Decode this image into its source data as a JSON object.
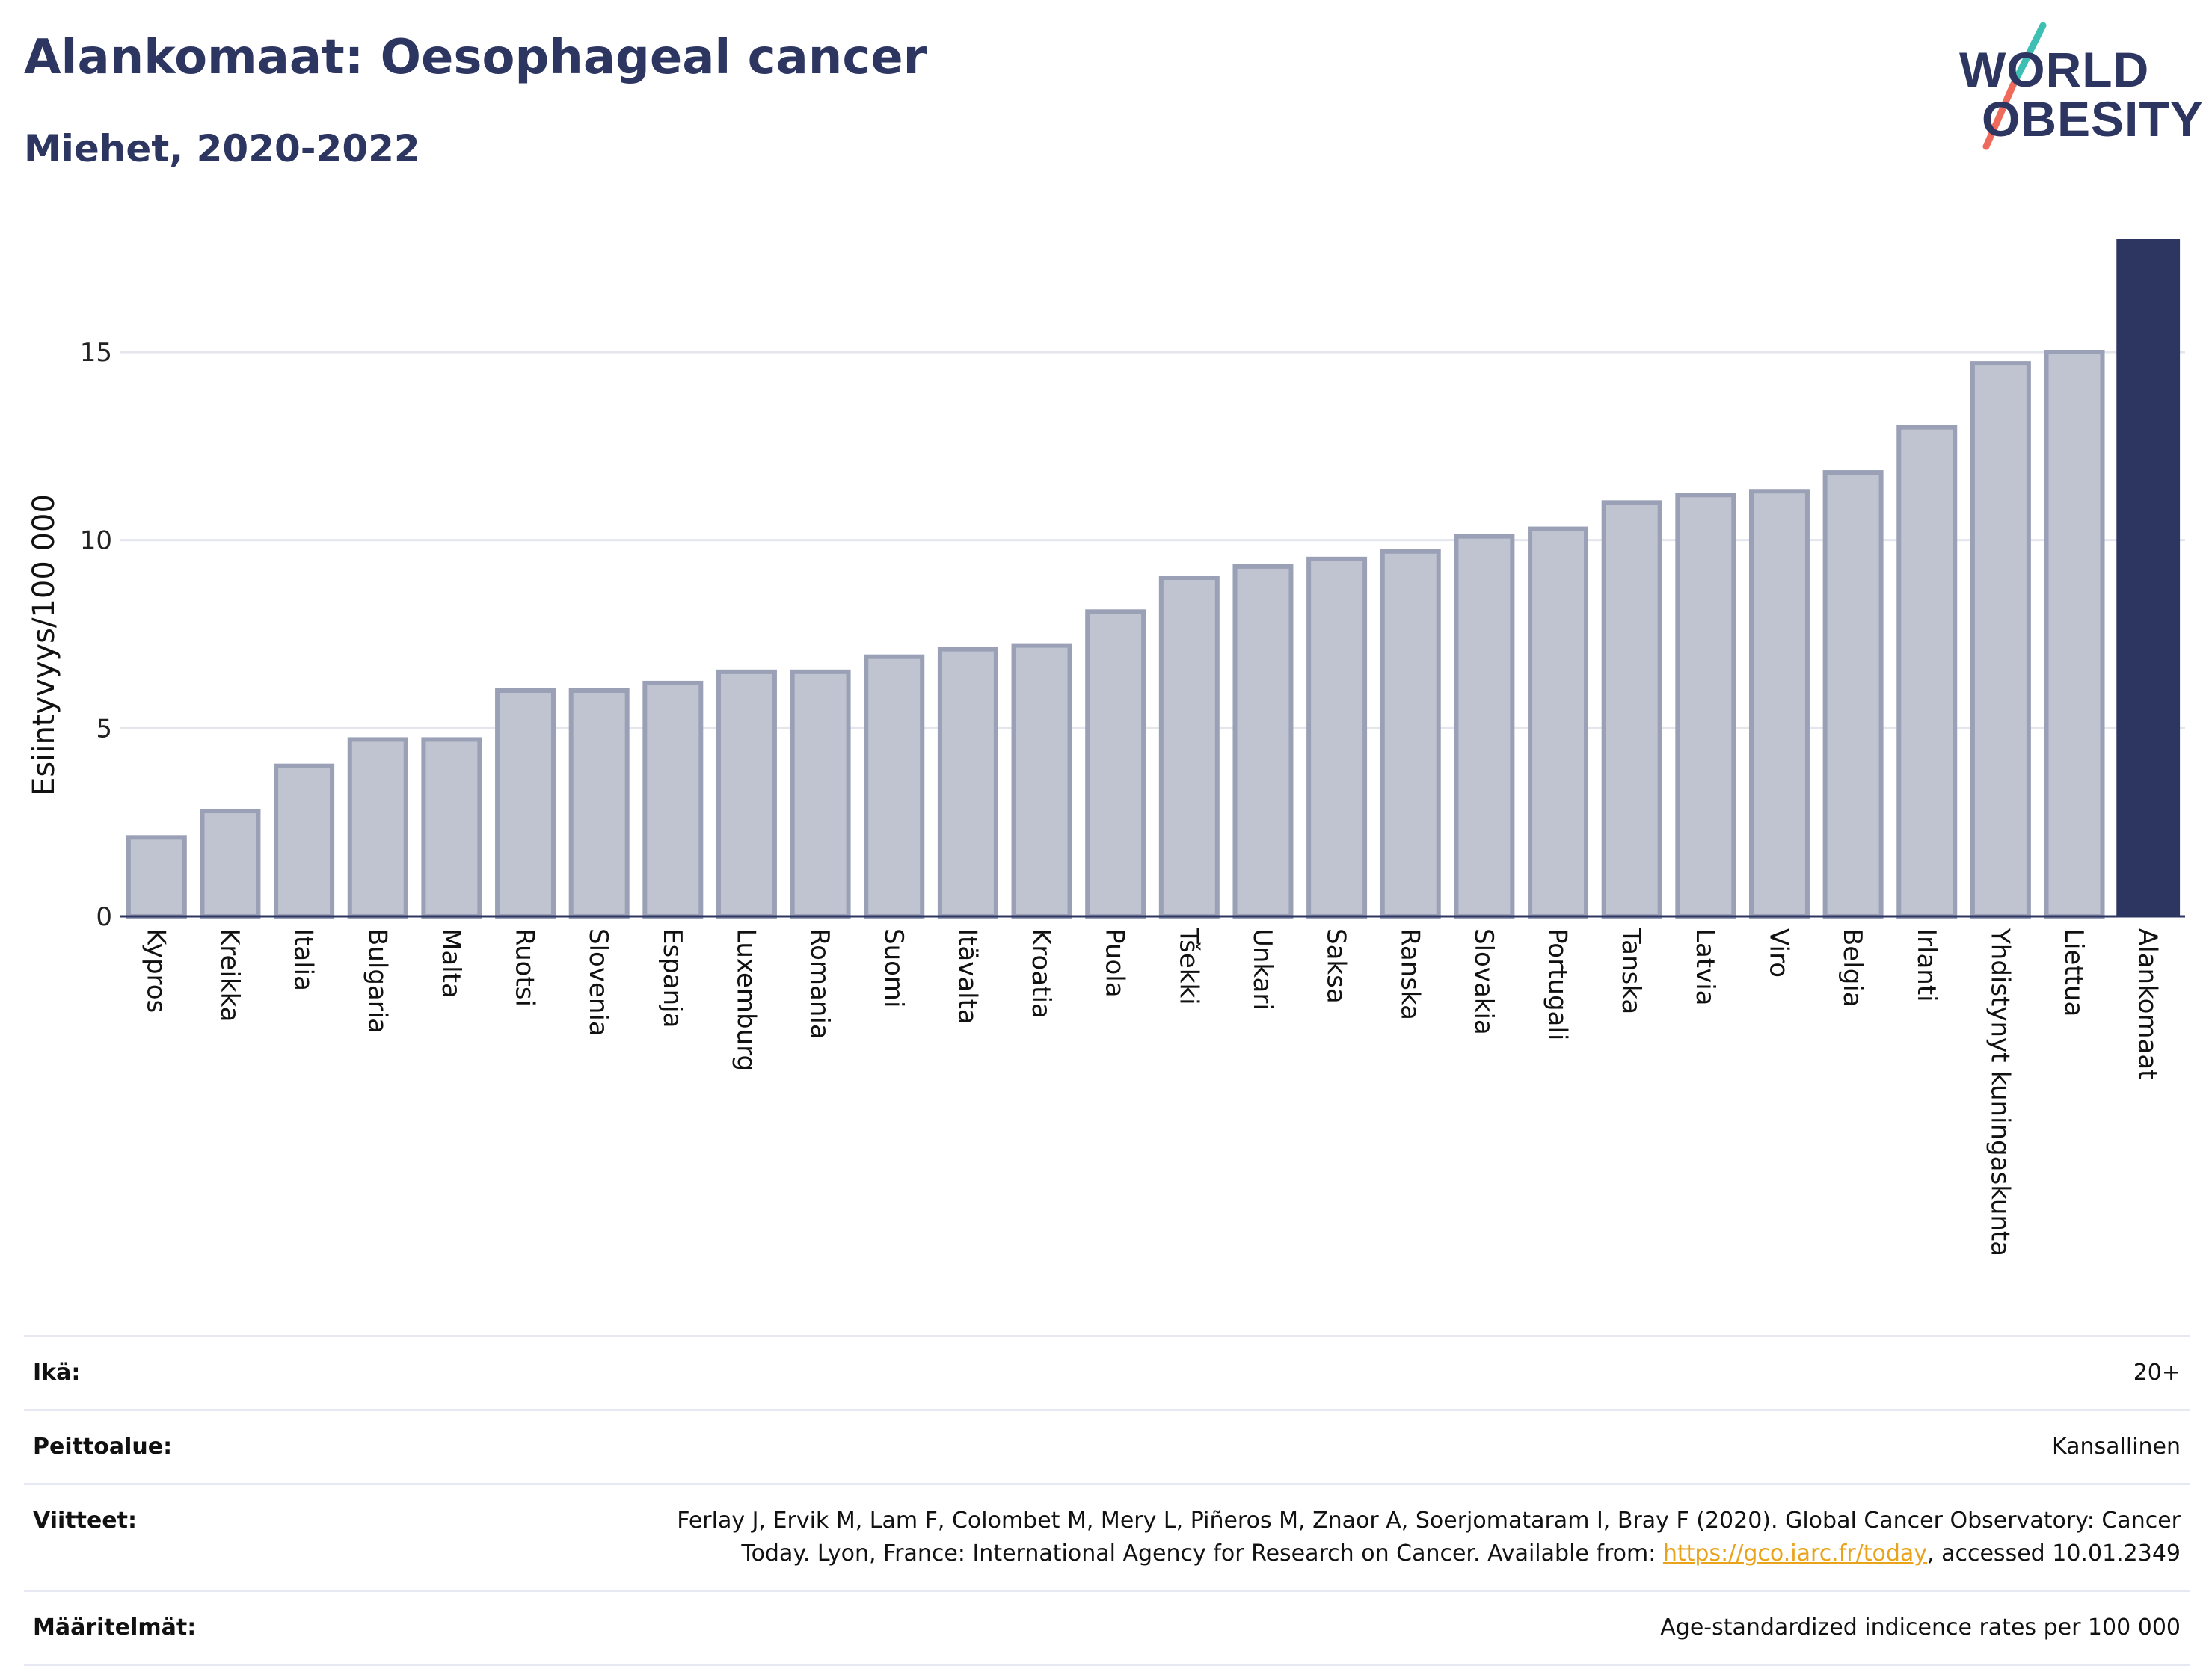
{
  "header": {
    "title": "Alankomaat: Oesophageal cancer",
    "subtitle": "Miehet, 2020-2022"
  },
  "logo": {
    "line1": "WORLD",
    "line2": "OBESITY",
    "slash_colors": [
      "#3ebfb4",
      "#ef6a5a"
    ]
  },
  "chart_data": {
    "type": "bar",
    "ylabel": "Esiintyvyys/100 000",
    "ylim": [
      0,
      18
    ],
    "yticks": [
      0,
      5,
      10,
      15
    ],
    "grid": true,
    "categories": [
      "Kypros",
      "Kreikka",
      "Italia",
      "Bulgaria",
      "Malta",
      "Ruotsi",
      "Slovenia",
      "Espanja",
      "Luxemburg",
      "Romania",
      "Suomi",
      "Itävalta",
      "Kroatia",
      "Puola",
      "Tšekki",
      "Unkari",
      "Saksa",
      "Ranska",
      "Slovakia",
      "Portugali",
      "Tanska",
      "Latvia",
      "Viro",
      "Belgia",
      "Irlanti",
      "Yhdistynyt kuningaskunta",
      "Liettua",
      "Alankomaat"
    ],
    "values": [
      2.1,
      2.8,
      4.0,
      4.7,
      4.7,
      6.0,
      6.0,
      6.2,
      6.5,
      6.5,
      6.9,
      7.1,
      7.2,
      8.1,
      9.0,
      9.3,
      9.5,
      9.7,
      10.1,
      10.3,
      11.0,
      11.2,
      11.3,
      11.8,
      13.0,
      14.7,
      15.0,
      18.0
    ],
    "highlight": "Alankomaat",
    "colors": {
      "bar": "#c0c4d0",
      "bar_border": "#9aa0b6",
      "highlight": "#2d3561"
    }
  },
  "meta": {
    "age_label": "Ikä:",
    "age_value": "20+",
    "coverage_label": "Peittoalue:",
    "coverage_value": "Kansallinen",
    "refs_label": "Viitteet:",
    "refs_line1": "Ferlay J, Ervik M, Lam F, Colombet M, Mery L, Piñeros M, Znaor A, Soerjomataram I, Bray F (2020). Global Cancer Observatory: Cancer",
    "refs_line2_pre": "Today. Lyon, France: International Agency for Research on Cancer. Available from: ",
    "refs_link": "https://gco.iarc.fr/today",
    "refs_line2_post": ", accessed 10.01.2349",
    "defs_label": "Määritelmät:",
    "defs_value": "Age-standardized indicence rates per 100 000"
  }
}
